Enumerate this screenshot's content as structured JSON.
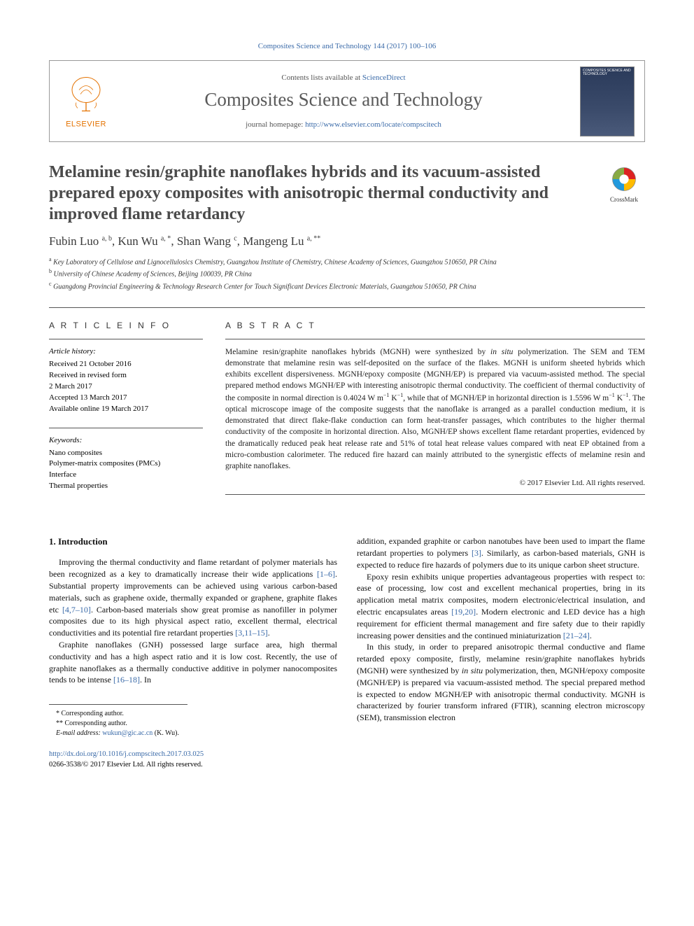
{
  "citation": "Composites Science and Technology 144 (2017) 100–106",
  "header": {
    "contents_prefix": "Contents lists available at ",
    "contents_link": "ScienceDirect",
    "journal": "Composites Science and Technology",
    "homepage_prefix": "journal homepage: ",
    "homepage_url": "http://www.elsevier.com/locate/compscitech",
    "elsevier_label": "ELSEVIER"
  },
  "colors": {
    "link": "#3a6aa8",
    "elsevier_orange": "#e47200",
    "title_gray": "#4a4a4a",
    "journal_gray": "#5a5a5a"
  },
  "crossmark_label": "CrossMark",
  "title": "Melamine resin/graphite nanoflakes hybrids and its vacuum-assisted prepared epoxy composites with anisotropic thermal conductivity and improved flame retardancy",
  "authors_html": "Fubin Luo <sup>a, b</sup>, Kun Wu <sup>a, *</sup>, Shan Wang <sup>c</sup>, Mangeng Lu <sup>a, **</sup>",
  "affiliations": [
    {
      "sup": "a",
      "text": "Key Laboratory of Cellulose and Lignocellulosics Chemistry, Guangzhou Institute of Chemistry, Chinese Academy of Sciences, Guangzhou 510650, PR China"
    },
    {
      "sup": "b",
      "text": "University of Chinese Academy of Sciences, Beijing 100039, PR China"
    },
    {
      "sup": "c",
      "text": "Guangdong Provincial Engineering & Technology Research Center for Touch Significant Devices Electronic Materials, Guangzhou 510650, PR China"
    }
  ],
  "article_info": {
    "heading": "A R T I C L E   I N F O",
    "history_label": "Article history:",
    "history": [
      "Received 21 October 2016",
      "Received in revised form",
      "2 March 2017",
      "Accepted 13 March 2017",
      "Available online 19 March 2017"
    ],
    "keywords_label": "Keywords:",
    "keywords": [
      "Nano composites",
      "Polymer-matrix composites (PMCs)",
      "Interface",
      "Thermal properties"
    ]
  },
  "abstract": {
    "heading": "A B S T R A C T",
    "text_html": "Melamine resin/graphite nanoflakes hybrids (MGNH) were synthesized by <i>in situ</i> polymerization. The SEM and TEM demonstrate that melamine resin was self-deposited on the surface of the flakes. MGNH is uniform sheeted hybrids which exhibits excellent dispersiveness. MGNH/epoxy composite (MGNH/EP) is prepared via vacuum-assisted method. The special prepared method endows MGNH/EP with interesting anisotropic thermal conductivity. The coefficient of thermal conductivity of the composite in normal direction is 0.4024 W m<sup>−1</sup> K<sup>−1</sup>, while that of MGNH/EP in horizontal direction is 1.5596 W m<sup>−1</sup> K<sup>−1</sup>. The optical microscope image of the composite suggests that the nanoflake is arranged as a parallel conduction medium, it is demonstrated that direct flake-flake conduction can form heat-transfer passages, which contributes to the higher thermal conductivity of the composite in horizontal direction. Also, MGNH/EP shows excellent flame retardant properties, evidenced by the dramatically reduced peak heat release rate and 51% of total heat release values compared with neat EP obtained from a micro-combustion calorimeter. The reduced fire hazard can mainly attributed to the synergistic effects of melamine resin and graphite nanoflakes.",
    "copyright": "© 2017 Elsevier Ltd. All rights reserved."
  },
  "body": {
    "section_number": "1.",
    "section_title": "Introduction",
    "col1": [
      "Improving the thermal conductivity and flame retardant of polymer materials has been recognized as a key to dramatically increase their wide applications <a class='reflink' href='#'>[1–6]</a>. Substantial property improvements can be achieved using various carbon-based materials, such as graphene oxide, thermally expanded or graphene, graphite flakes etc <a class='reflink' href='#'>[4,7–10]</a>. Carbon-based materials show great promise as nanofiller in polymer composites due to its high physical aspect ratio, excellent thermal, electrical conductivities and its potential fire retardant properties <a class='reflink' href='#'>[3,11–15]</a>.",
      "Graphite nanoflakes (GNH) possessed large surface area, high thermal conductivity and has a high aspect ratio and it is low cost. Recently, the use of graphite nanoflakes as a thermally conductive additive in polymer nanocomposites tends to be intense <a class='reflink' href='#'>[16–18]</a>. In"
    ],
    "col2": [
      "addition, expanded graphite or carbon nanotubes have been used to impart the flame retardant properties to polymers <a class='reflink' href='#'>[3]</a>. Similarly, as carbon-based materials, GNH is expected to reduce fire hazards of polymers due to its unique carbon sheet structure.",
      "Epoxy resin exhibits unique properties advantageous properties with respect to: ease of processing, low cost and excellent mechanical properties, bring in its application metal matrix composites, modern electronic/electrical insulation, and electric encapsulates areas <a class='reflink' href='#'>[19,20]</a>. Modern electronic and LED device has a high requirement for efficient thermal management and fire safety due to their rapidly increasing power densities and the continued miniaturization <a class='reflink' href='#'>[21–24]</a>.",
      "In this study, in order to prepared anisotropic thermal conductive and flame retarded epoxy composite, firstly, melamine resin/graphite nanoflakes hybrids (MGNH) were synthesized by <i>in situ</i> polymerization, then, MGNH/epoxy composite (MGNH/EP) is prepared via vacuum-assisted method. The special prepared method is expected to endow MGNH/EP with anisotropic thermal conductivity. MGNH is characterized by fourier transform infrared (FTIR), scanning electron microscopy (SEM), transmission electron"
    ]
  },
  "footnotes": {
    "items": [
      "* Corresponding author.",
      "** Corresponding author."
    ],
    "email_label": "E-mail address:",
    "email": "wukun@gic.ac.cn",
    "email_person": "(K. Wu)."
  },
  "doi": {
    "url": "http://dx.doi.org/10.1016/j.compscitech.2017.03.025",
    "issn_line": "0266-3538/© 2017 Elsevier Ltd. All rights reserved."
  }
}
